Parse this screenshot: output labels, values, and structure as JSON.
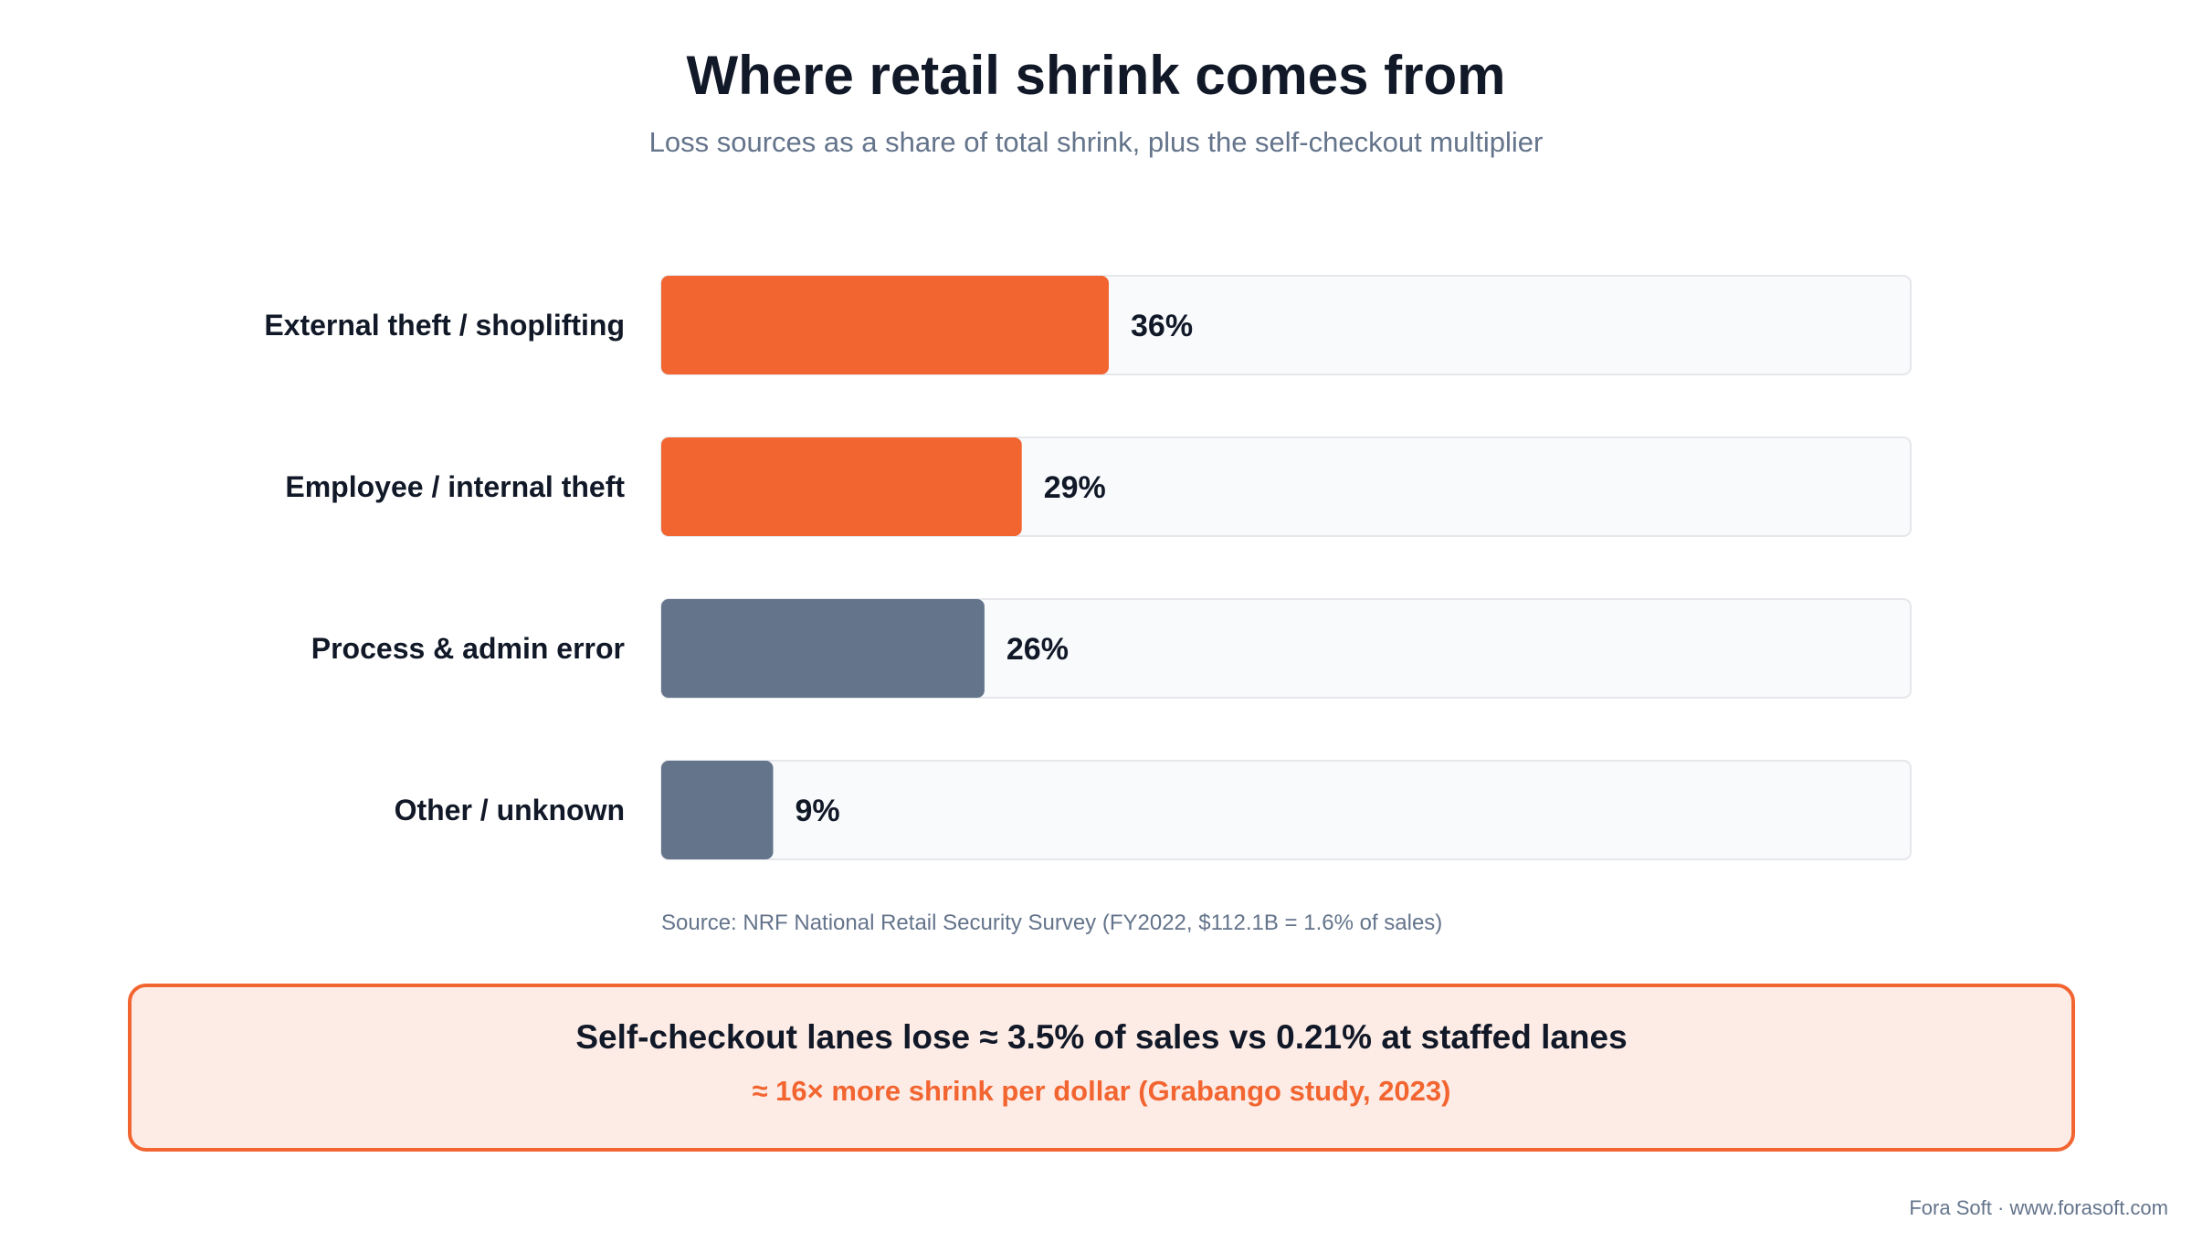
{
  "title": "Where retail shrink comes from",
  "subtitle": "Loss sources as a share of total shrink, plus the self-checkout multiplier",
  "chart_data": {
    "type": "bar",
    "orientation": "horizontal",
    "categories": [
      "External theft / shoplifting",
      "Employee / internal theft",
      "Process & admin error",
      "Other / unknown"
    ],
    "values": [
      36,
      29,
      26,
      9
    ],
    "value_labels": [
      "36%",
      "29%",
      "26%",
      "9%"
    ],
    "xlim": [
      0,
      100
    ],
    "colors": [
      "#f26531",
      "#f26531",
      "#64748b",
      "#64748b"
    ],
    "track_color": "#f8fafc",
    "grid": false
  },
  "source": "Source: NRF National Retail Security Survey (FY2022, $112.1B = 1.6% of sales)",
  "callout": {
    "main": "Self-checkout lanes lose ≈ 3.5% of sales vs 0.21% at staffed lanes",
    "sub": "≈ 16× more shrink per dollar (Grabango study, 2023)"
  },
  "footer": "Fora Soft · www.forasoft.com"
}
